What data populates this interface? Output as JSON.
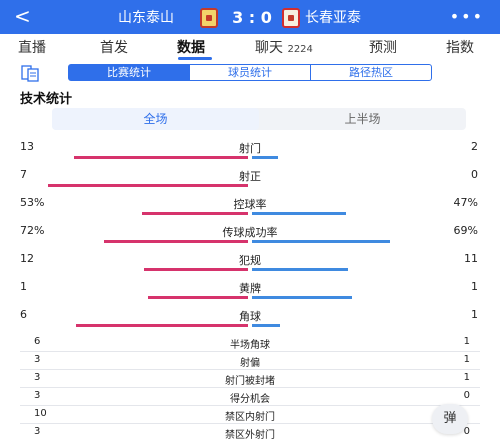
{
  "header": {
    "home_team": "山东泰山",
    "away_team": "长春亚泰",
    "score": "3 : 0",
    "back_glyph": "<",
    "more_glyph": "•••"
  },
  "tabs": [
    {
      "label": "直播"
    },
    {
      "label": "首发"
    },
    {
      "label": "数据",
      "active": true
    },
    {
      "label": "聊天",
      "sub": "2224"
    },
    {
      "label": "预测"
    },
    {
      "label": "指数"
    }
  ],
  "subtabs": [
    "比赛统计",
    "球员统计",
    "路径热区"
  ],
  "section_title": "技术统计",
  "period": [
    "全场",
    "上半场"
  ],
  "bar_stats": [
    {
      "label": "射门",
      "home": "13",
      "away": "2",
      "home_frac": 0.87,
      "away_frac": 0.13
    },
    {
      "label": "射正",
      "home": "7",
      "away": "0",
      "home_frac": 1.0,
      "away_frac": 0.0
    },
    {
      "label": "控球率",
      "home": "53%",
      "away": "47%",
      "home_frac": 0.53,
      "away_frac": 0.47
    },
    {
      "label": "传球成功率",
      "home": "72%",
      "away": "69%",
      "home_frac": 0.72,
      "away_frac": 0.69
    },
    {
      "label": "犯规",
      "home": "12",
      "away": "11",
      "home_frac": 0.52,
      "away_frac": 0.48
    },
    {
      "label": "黄牌",
      "home": "1",
      "away": "1",
      "home_frac": 0.5,
      "away_frac": 0.5
    },
    {
      "label": "角球",
      "home": "6",
      "away": "1",
      "home_frac": 0.86,
      "away_frac": 0.14
    }
  ],
  "list_stats": [
    {
      "label": "半场角球",
      "home": "6",
      "away": "1"
    },
    {
      "label": "射偏",
      "home": "3",
      "away": "1"
    },
    {
      "label": "射门被封堵",
      "home": "3",
      "away": "1"
    },
    {
      "label": "得分机会",
      "home": "3",
      "away": "0"
    },
    {
      "label": "禁区内射门",
      "home": "10",
      "away": ""
    },
    {
      "label": "禁区外射门",
      "home": "3",
      "away": "0"
    }
  ],
  "float_button": "弹",
  "colors": {
    "accent": "#2f6fea",
    "home_bar": "#d6336c",
    "away_bar": "#3f8ae0"
  }
}
